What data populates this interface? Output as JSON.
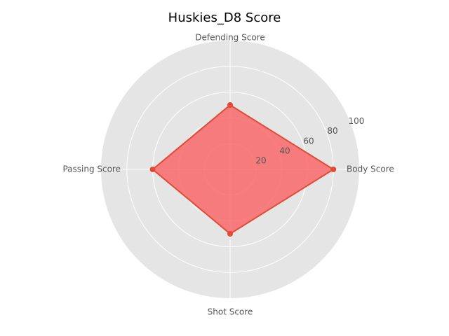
{
  "chart_data": {
    "type": "radar",
    "title": "Huskies_D8 Score",
    "categories": [
      "Body Score",
      "Defending Score",
      "Passing Score",
      "Shot Score"
    ],
    "series": [
      {
        "values": [
          80,
          50,
          60,
          50
        ]
      }
    ],
    "rlim": [
      0,
      100
    ],
    "rticks": [
      20,
      40,
      60,
      80,
      100
    ],
    "rtick_labels": [
      "20",
      "40",
      "60",
      "80",
      "100"
    ],
    "grid": true,
    "colors": {
      "line": "#E24A33",
      "fill": "#F8696B",
      "background": "#E5E5E5",
      "grid": "#FFFFFF"
    }
  }
}
